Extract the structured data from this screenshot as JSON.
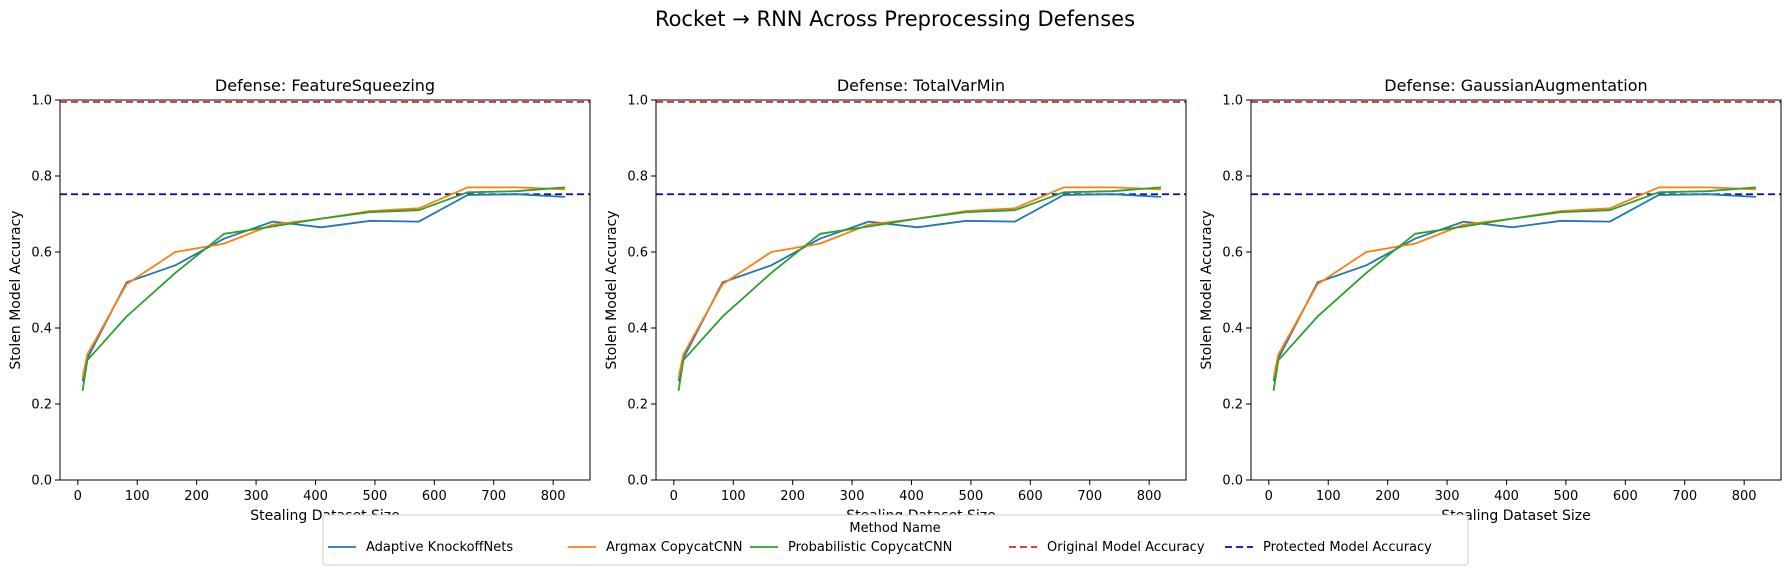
{
  "figure_title": "Rocket → RNN Across Preprocessing Defenses",
  "legend": {
    "title": "Method Name",
    "entries": [
      {
        "label": "Adaptive KnockoffNets",
        "color": "#1f77b4",
        "style": "solid"
      },
      {
        "label": "Argmax CopycatCNN",
        "color": "#ff7f0e",
        "style": "solid"
      },
      {
        "label": "Probabilistic CopycatCNN",
        "color": "#2ca02c",
        "style": "solid"
      },
      {
        "label": "Original Model Accuracy",
        "color": "#d62728",
        "style": "dashed"
      },
      {
        "label": "Protected Model Accuracy",
        "color": "#0000cc",
        "style": "dashed"
      }
    ]
  },
  "chart_data": [
    {
      "type": "line",
      "title": "Defense: FeatureSqueezing",
      "xlabel": "Stealing Dataset Size",
      "ylabel": "Stolen Model Accuracy",
      "xticks": [
        0,
        100,
        200,
        300,
        400,
        500,
        600,
        700,
        800
      ],
      "yticks": [
        "0.0",
        "0.2",
        "0.4",
        "0.6",
        "0.8",
        "1.0"
      ],
      "xlim": [
        -30,
        862
      ],
      "ylim": [
        0,
        1.0
      ],
      "x": [
        8,
        16,
        82,
        164,
        246,
        328,
        410,
        492,
        574,
        656,
        738,
        820
      ],
      "series": [
        {
          "name": "Adaptive KnockoffNets",
          "values": [
            0.26,
            0.32,
            0.52,
            0.565,
            0.635,
            0.68,
            0.665,
            0.682,
            0.68,
            0.75,
            0.752,
            0.745
          ]
        },
        {
          "name": "Argmax CopycatCNN",
          "values": [
            0.27,
            0.33,
            0.515,
            0.6,
            0.622,
            0.672,
            0.688,
            0.708,
            0.715,
            0.77,
            0.77,
            0.765
          ]
        },
        {
          "name": "Probabilistic CopycatCNN",
          "values": [
            0.235,
            0.315,
            0.43,
            0.545,
            0.648,
            0.667,
            0.688,
            0.705,
            0.71,
            0.757,
            0.76,
            0.77
          ]
        }
      ],
      "hlines": [
        {
          "name": "Original Model Accuracy",
          "y": 0.995
        },
        {
          "name": "Protected Model Accuracy",
          "y": 0.752
        }
      ]
    },
    {
      "type": "line",
      "title": "Defense: TotalVarMin",
      "xlabel": "Stealing Dataset Size",
      "ylabel": "Stolen Model Accuracy",
      "xticks": [
        0,
        100,
        200,
        300,
        400,
        500,
        600,
        700,
        800
      ],
      "yticks": [
        "0.0",
        "0.2",
        "0.4",
        "0.6",
        "0.8",
        "1.0"
      ],
      "xlim": [
        -30,
        862
      ],
      "ylim": [
        0,
        1.0
      ],
      "x": [
        8,
        16,
        82,
        164,
        246,
        328,
        410,
        492,
        574,
        656,
        738,
        820
      ],
      "series": [
        {
          "name": "Adaptive KnockoffNets",
          "values": [
            0.26,
            0.32,
            0.52,
            0.565,
            0.635,
            0.68,
            0.665,
            0.682,
            0.68,
            0.75,
            0.752,
            0.745
          ]
        },
        {
          "name": "Argmax CopycatCNN",
          "values": [
            0.27,
            0.33,
            0.515,
            0.6,
            0.622,
            0.672,
            0.688,
            0.708,
            0.715,
            0.77,
            0.77,
            0.765
          ]
        },
        {
          "name": "Probabilistic CopycatCNN",
          "values": [
            0.235,
            0.315,
            0.43,
            0.545,
            0.648,
            0.667,
            0.688,
            0.705,
            0.71,
            0.757,
            0.76,
            0.77
          ]
        }
      ],
      "hlines": [
        {
          "name": "Original Model Accuracy",
          "y": 0.995
        },
        {
          "name": "Protected Model Accuracy",
          "y": 0.752
        }
      ]
    },
    {
      "type": "line",
      "title": "Defense: GaussianAugmentation",
      "xlabel": "Stealing Dataset Size",
      "ylabel": "Stolen Model Accuracy",
      "xticks": [
        0,
        100,
        200,
        300,
        400,
        500,
        600,
        700,
        800
      ],
      "yticks": [
        "0.0",
        "0.2",
        "0.4",
        "0.6",
        "0.8",
        "1.0"
      ],
      "xlim": [
        -30,
        862
      ],
      "ylim": [
        0,
        1.0
      ],
      "x": [
        8,
        16,
        82,
        164,
        246,
        328,
        410,
        492,
        574,
        656,
        738,
        820
      ],
      "series": [
        {
          "name": "Adaptive KnockoffNets",
          "values": [
            0.26,
            0.32,
            0.52,
            0.565,
            0.635,
            0.68,
            0.665,
            0.682,
            0.68,
            0.75,
            0.752,
            0.745
          ]
        },
        {
          "name": "Argmax CopycatCNN",
          "values": [
            0.27,
            0.33,
            0.515,
            0.6,
            0.622,
            0.672,
            0.688,
            0.708,
            0.715,
            0.77,
            0.77,
            0.765
          ]
        },
        {
          "name": "Probabilistic CopycatCNN",
          "values": [
            0.235,
            0.315,
            0.43,
            0.545,
            0.648,
            0.667,
            0.688,
            0.705,
            0.71,
            0.757,
            0.76,
            0.77
          ]
        }
      ],
      "hlines": [
        {
          "name": "Original Model Accuracy",
          "y": 0.995
        },
        {
          "name": "Protected Model Accuracy",
          "y": 0.752
        }
      ]
    }
  ]
}
